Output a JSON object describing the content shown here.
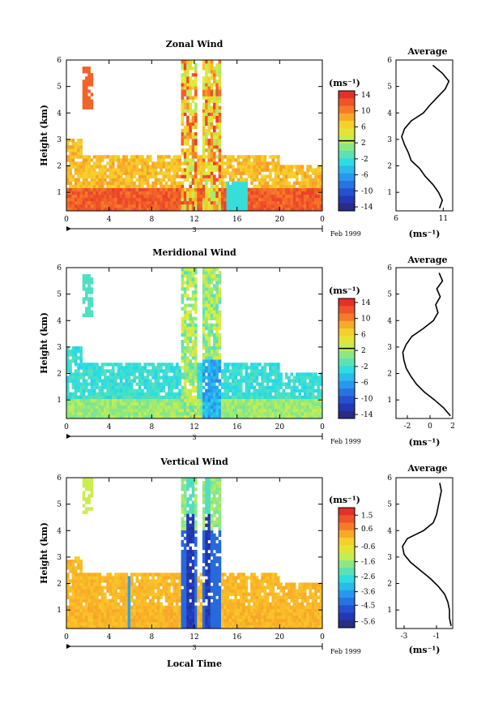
{
  "figure": {
    "xlabel": "Local Time",
    "day_label": "3",
    "date_label": "Feb 1999",
    "ylabel": "Height (km)",
    "profile_title": "Average",
    "unit": "(ms⁻¹)"
  },
  "chart_data": [
    {
      "type": "heatmap",
      "title": "Zonal Wind",
      "xlabel": "",
      "ylabel": "Height (km)",
      "xlim": [
        0,
        24
      ],
      "ylim": [
        0.3,
        6
      ],
      "x_ticks": [
        "0",
        "4",
        "8",
        "12",
        "16",
        "20",
        "0"
      ],
      "y_ticks": [
        "1",
        "2",
        "3",
        "4",
        "5",
        "6"
      ],
      "colorbar": {
        "min": -15,
        "max": 15,
        "ticks": [
          "14",
          "10",
          "6",
          "2",
          "-2",
          "-6",
          "-10",
          "-14"
        ],
        "zero_line": 2.5
      },
      "profile": {
        "title": "Average",
        "xlim": [
          6,
          12
        ],
        "x_ticks": [
          "6",
          "11"
        ],
        "xlabel": "(ms⁻¹)",
        "heights": [
          0.4,
          0.7,
          1.0,
          1.3,
          1.6,
          1.9,
          2.2,
          2.5,
          2.8,
          3.1,
          3.4,
          3.7,
          4.0,
          4.3,
          4.6,
          4.9,
          5.2,
          5.5,
          5.8
        ],
        "values": [
          10.6,
          10.9,
          10.5,
          9.9,
          9.1,
          8.5,
          7.6,
          7.3,
          6.9,
          6.6,
          6.9,
          7.6,
          8.9,
          9.6,
          10.4,
          11.2,
          11.6,
          10.9,
          9.9
        ]
      }
    },
    {
      "type": "heatmap",
      "title": "Meridional Wind",
      "xlabel": "",
      "ylabel": "Height (km)",
      "xlim": [
        0,
        24
      ],
      "ylim": [
        0.3,
        6
      ],
      "x_ticks": [
        "0",
        "4",
        "8",
        "12",
        "16",
        "20",
        "0"
      ],
      "y_ticks": [
        "1",
        "2",
        "3",
        "4",
        "5",
        "6"
      ],
      "colorbar": {
        "min": -15,
        "max": 15,
        "ticks": [
          "14",
          "10",
          "6",
          "2",
          "-2",
          "-6",
          "-10",
          "-14"
        ],
        "zero_line": 2.5
      },
      "profile": {
        "title": "Average",
        "xlim": [
          -3,
          2
        ],
        "x_ticks": [
          "-2",
          "0",
          "2"
        ],
        "xlabel": "(ms⁻¹)",
        "heights": [
          0.4,
          0.7,
          1.0,
          1.3,
          1.6,
          1.9,
          2.2,
          2.5,
          2.8,
          3.1,
          3.4,
          3.7,
          4.0,
          4.3,
          4.6,
          4.9,
          5.2,
          5.5,
          5.8
        ],
        "values": [
          1.8,
          1.2,
          0.4,
          -0.5,
          -1.2,
          -1.7,
          -2.1,
          -2.3,
          -2.4,
          -2.1,
          -1.6,
          -0.6,
          0.3,
          0.7,
          0.5,
          0.9,
          0.6,
          1.1,
          0.8
        ]
      }
    },
    {
      "type": "heatmap",
      "title": "Vertical Wind",
      "xlabel": "Local Time",
      "ylabel": "Height (km)",
      "xlim": [
        0,
        24
      ],
      "ylim": [
        0.3,
        6
      ],
      "x_ticks": [
        "0",
        "4",
        "8",
        "12",
        "16",
        "20",
        "0"
      ],
      "y_ticks": [
        "1",
        "2",
        "3",
        "4",
        "5",
        "6"
      ],
      "colorbar": {
        "min": -6,
        "max": 2,
        "ticks": [
          "1.5",
          "0.6",
          "-0.6",
          "-1.6",
          "-2.6",
          "-3.6",
          "-4.5",
          "-5.6"
        ]
      },
      "profile": {
        "title": "Average",
        "xlim": [
          -3.5,
          0
        ],
        "x_ticks": [
          "-3",
          "-1"
        ],
        "xlabel": "(ms⁻¹)",
        "heights": [
          0.4,
          0.7,
          1.0,
          1.3,
          1.6,
          1.9,
          2.2,
          2.5,
          2.8,
          3.1,
          3.4,
          3.7,
          4.0,
          4.3,
          4.6,
          4.9,
          5.2,
          5.5,
          5.8
        ],
        "values": [
          -0.1,
          -0.2,
          -0.2,
          -0.3,
          -0.5,
          -0.9,
          -1.4,
          -2.0,
          -2.6,
          -3.0,
          -3.1,
          -2.8,
          -1.8,
          -1.2,
          -1.0,
          -0.9,
          -0.8,
          -0.7,
          -0.8
        ]
      }
    }
  ]
}
